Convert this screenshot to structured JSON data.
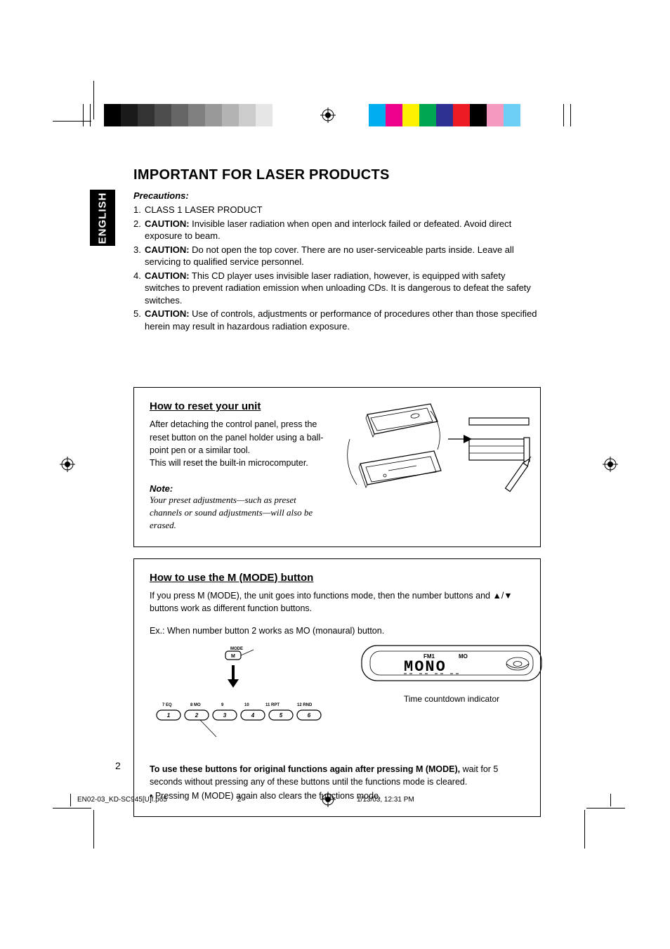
{
  "language_tab": "ENGLISH",
  "title": "IMPORTANT FOR LASER PRODUCTS",
  "precautions_label": "Precautions:",
  "precautions": [
    {
      "n": "1.",
      "bold": "",
      "text": "CLASS 1 LASER PRODUCT"
    },
    {
      "n": "2.",
      "bold": "CAUTION:",
      "text": " Invisible laser radiation when open and interlock failed or defeated. Avoid direct exposure to beam."
    },
    {
      "n": "3.",
      "bold": "CAUTION:",
      "text": " Do not open the top cover. There are no user-serviceable parts inside. Leave all servicing to qualified service personnel."
    },
    {
      "n": "4.",
      "bold": "CAUTION:",
      "text": " This CD player uses invisible laser radiation, however, is equipped with safety switches to prevent radiation emission when unloading CDs. It is dangerous to defeat the safety switches."
    },
    {
      "n": "5.",
      "bold": "CAUTION:",
      "text": " Use of controls, adjustments or performance of procedures other than those specified herein may result in hazardous radiation exposure."
    }
  ],
  "reset": {
    "heading": "How to reset your unit",
    "p1": "After detaching the control panel, press the reset button on the panel holder using a ball-point pen or a similar tool.",
    "p2": "This will reset the built-in microcomputer.",
    "note_hd": "Note:",
    "note_body": "Your preset adjustments—such as preset channels or sound adjustments—will also be erased."
  },
  "mode": {
    "heading": "How to use the M (MODE) button",
    "p1_a": "If you press M (MODE), the unit goes into functions mode, then the number buttons and ",
    "p1_b": " buttons work as different function buttons.",
    "ex": "Ex.:  When number button 2 works as MO (monaural) button.",
    "btn_labels": [
      "7   EQ",
      "8   MO",
      "9",
      "10",
      "11  RPT",
      "12  RND"
    ],
    "mode_label": "MODE",
    "m_label": "M",
    "display_band": "FM1",
    "display_mo": "MO",
    "display_text": "MONO",
    "caption": "Time countdown indicator",
    "footer_bold": "To use these buttons for original functions again after pressing M (MODE),",
    "footer_rest": " wait for 5 seconds without pressing any of these buttons until the functions mode is cleared.",
    "bullet": "•  Pressing M (MODE) again also clears the functions mode."
  },
  "page_number": "2",
  "imprint": {
    "file": "EN02-03_KD-SC945[U]f.p65",
    "page": "2",
    "date": "1/13/03, 12:31 PM"
  },
  "colorbar_left": [
    "#000000",
    "#1a1a1a",
    "#333333",
    "#4d4d4d",
    "#666666",
    "#808080",
    "#999999",
    "#b3b3b3",
    "#cccccc",
    "#e6e6e6"
  ],
  "colorbar_right": [
    "#00aeef",
    "#ec008c",
    "#fff200",
    "#00a651",
    "#2e3192",
    "#ed1c24",
    "#000000",
    "#f49ac1",
    "#6dcff6",
    "#ffffff"
  ]
}
